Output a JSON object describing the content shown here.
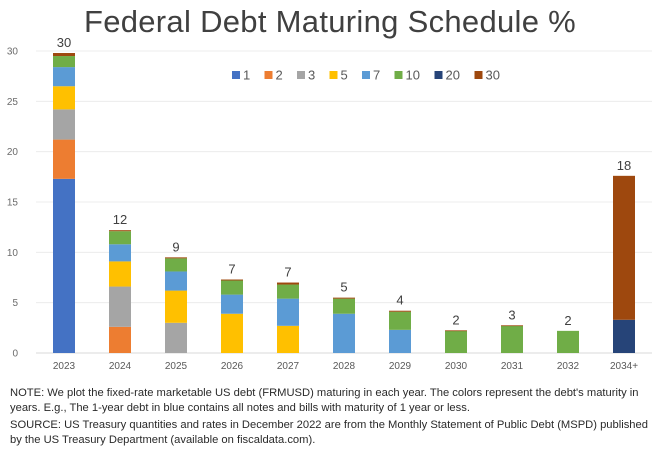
{
  "chart_data": {
    "type": "bar",
    "stacked": true,
    "title": "Federal Debt Maturing Schedule %",
    "xlabel": "",
    "ylabel": "",
    "ylim": [
      0,
      30
    ],
    "yticks": [
      0,
      5,
      10,
      15,
      20,
      25,
      30
    ],
    "grid": true,
    "legend_position": "top-center",
    "categories": [
      "2023",
      "2024",
      "2025",
      "2026",
      "2027",
      "2028",
      "2029",
      "2030",
      "2031",
      "2032",
      "2034+"
    ],
    "totals_labels": [
      "30",
      "12",
      "9",
      "7",
      "7",
      "5",
      "4",
      "2",
      "3",
      "2",
      "18"
    ],
    "series": [
      {
        "name": "1",
        "color": "#4472c4",
        "values": [
          17.3,
          0,
          0,
          0,
          0,
          0,
          0,
          0,
          0,
          0,
          0
        ]
      },
      {
        "name": "2",
        "color": "#ed7d31",
        "values": [
          3.9,
          2.6,
          0,
          0,
          0,
          0,
          0,
          0,
          0,
          0,
          0
        ]
      },
      {
        "name": "3",
        "color": "#a5a5a5",
        "values": [
          3.0,
          4.0,
          3.0,
          0,
          0,
          0,
          0,
          0,
          0,
          0,
          0
        ]
      },
      {
        "name": "5",
        "color": "#ffc000",
        "values": [
          2.3,
          2.5,
          3.2,
          3.9,
          2.7,
          0,
          0,
          0,
          0,
          0,
          0
        ]
      },
      {
        "name": "7",
        "color": "#5b9bd5",
        "values": [
          1.9,
          1.7,
          1.9,
          1.9,
          2.7,
          3.9,
          2.3,
          0,
          0,
          0,
          0
        ]
      },
      {
        "name": "10",
        "color": "#70ad47",
        "values": [
          1.1,
          1.3,
          1.3,
          1.4,
          1.4,
          1.5,
          1.8,
          2.2,
          2.7,
          2.2,
          0
        ]
      },
      {
        "name": "20",
        "color": "#264478",
        "values": [
          0,
          0,
          0,
          0,
          0,
          0,
          0,
          0,
          0,
          0,
          3.3
        ]
      },
      {
        "name": "30",
        "color": "#9e480e",
        "values": [
          0.3,
          0.1,
          0.1,
          0.1,
          0.2,
          0.1,
          0.1,
          0.05,
          0.05,
          0,
          14.3
        ]
      }
    ]
  },
  "notes": {
    "note": "NOTE:  We plot the fixed-rate marketable US debt (FRMUSD) maturing in each year. The colors represent the debt's maturity in years. E.g., The 1-year debt in blue contains all notes and bills with maturity of 1 year or less.",
    "source": "SOURCE: US Treasury quantities and rates in December 2022 are from the Monthly Statement of Public Debt (MSPD) published by the US Treasury Department (available on fiscaldata.com)."
  }
}
